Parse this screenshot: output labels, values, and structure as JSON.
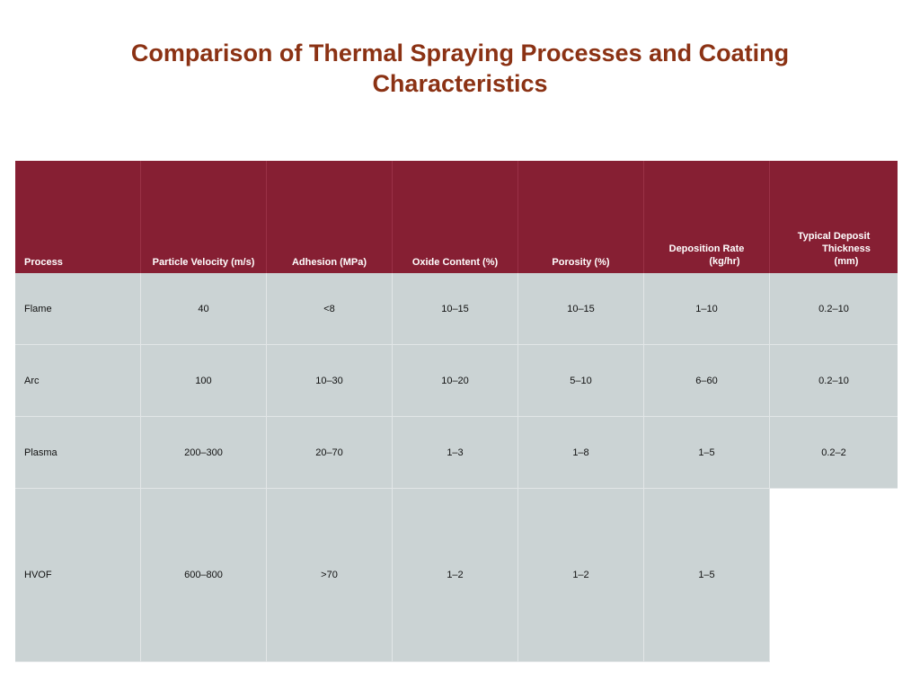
{
  "title": {
    "line1": "Comparison of Thermal Spraying Processes and Coating",
    "line2": "Characteristics"
  },
  "table": {
    "headers": [
      "Process",
      "Particle Velocity (m/s)",
      "Adhesion (MPa)",
      "Oxide Content (%)",
      "Porosity (%)",
      [
        "Deposition Rate",
        "(kg/hr)"
      ],
      [
        "Typical Deposit",
        "Thickness",
        "(mm)"
      ]
    ],
    "rows": [
      [
        "Flame",
        "40",
        "<8",
        "10–15",
        "10–15",
        "1–10",
        "0.2–10"
      ],
      [
        "Arc",
        "100",
        "10–30",
        "10–20",
        "5–10",
        "6–60",
        "0.2–10"
      ],
      [
        "Plasma",
        "200–300",
        "20–70",
        "1–3",
        "1–8",
        "1–5",
        "0.2–2"
      ],
      [
        "HVOF",
        "600–800",
        ">70",
        "1–2",
        "1–2",
        "1–5",
        ""
      ]
    ],
    "colors": {
      "header_bg": "#861f33",
      "body_bg": "#cbd3d4",
      "title_color": "#8b3214"
    }
  }
}
